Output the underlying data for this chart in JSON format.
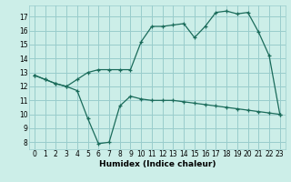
{
  "xlabel": "Humidex (Indice chaleur)",
  "bg_color": "#cceee8",
  "grid_color": "#99cccc",
  "line_color": "#1a6b5a",
  "x_upper": [
    0,
    1,
    2,
    3,
    4,
    5,
    6,
    7,
    8,
    9,
    10,
    11,
    12,
    13,
    14,
    15,
    16,
    17,
    18,
    19,
    20,
    21,
    22,
    23
  ],
  "y_upper": [
    12.8,
    12.5,
    12.2,
    12.0,
    12.5,
    13.0,
    13.2,
    13.2,
    13.2,
    13.2,
    15.2,
    16.3,
    16.3,
    16.4,
    16.5,
    15.5,
    16.3,
    17.3,
    17.4,
    17.2,
    17.3,
    15.9,
    14.2,
    10.0
  ],
  "x_lower": [
    0,
    1,
    2,
    3,
    4,
    5,
    6,
    7,
    8,
    9,
    10,
    11,
    12,
    13,
    14,
    15,
    16,
    17,
    18,
    19,
    20,
    21,
    22,
    23
  ],
  "y_lower": [
    12.8,
    12.5,
    12.2,
    12.0,
    11.7,
    9.7,
    7.9,
    8.0,
    10.6,
    11.3,
    11.1,
    11.0,
    11.0,
    11.0,
    10.9,
    10.8,
    10.7,
    10.6,
    10.5,
    10.4,
    10.3,
    10.2,
    10.1,
    10.0
  ],
  "xlim": [
    -0.5,
    23.5
  ],
  "ylim": [
    7.5,
    17.8
  ],
  "xticks": [
    0,
    1,
    2,
    3,
    4,
    5,
    6,
    7,
    8,
    9,
    10,
    11,
    12,
    13,
    14,
    15,
    16,
    17,
    18,
    19,
    20,
    21,
    22,
    23
  ],
  "yticks": [
    8,
    9,
    10,
    11,
    12,
    13,
    14,
    15,
    16,
    17
  ],
  "xlabel_fontsize": 6.5,
  "tick_fontsize": 5.5
}
